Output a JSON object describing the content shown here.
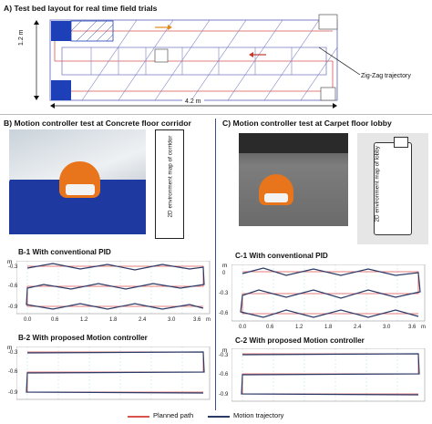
{
  "panel_a": {
    "title": "A) Test bed layout for real time field trials",
    "height_label": "1.2 m",
    "width_label": "4.2 m",
    "annotation": "Zig-Zag trajectory"
  },
  "panel_b": {
    "title": "B) Motion controller test at Concrete floor corridor",
    "map_label": "2D environment map of corridor",
    "plot1_title": "B-1 With conventional PID",
    "plot2_title": "B-2 With proposed Motion controller"
  },
  "panel_c": {
    "title": "C) Motion controller test at Carpet floor lobby",
    "map_label": "2D environment map of lobby",
    "plot1_title": "C-1 With conventional PID",
    "plot2_title": "C-2 With proposed Motion controller"
  },
  "axes": {
    "y_unit": "m",
    "x_unit": "m",
    "y_ticks": [
      "0",
      "-0.3",
      "-0.6",
      "-0.9"
    ],
    "x_ticks": [
      "0.0",
      "0.6",
      "1.2",
      "1.8",
      "2.4",
      "3.0",
      "3.6"
    ]
  },
  "legend": {
    "planned": "Planned path",
    "motion": "Motion trajectory",
    "planned_color": "#d9534f",
    "motion_color": "#2b3a67"
  }
}
